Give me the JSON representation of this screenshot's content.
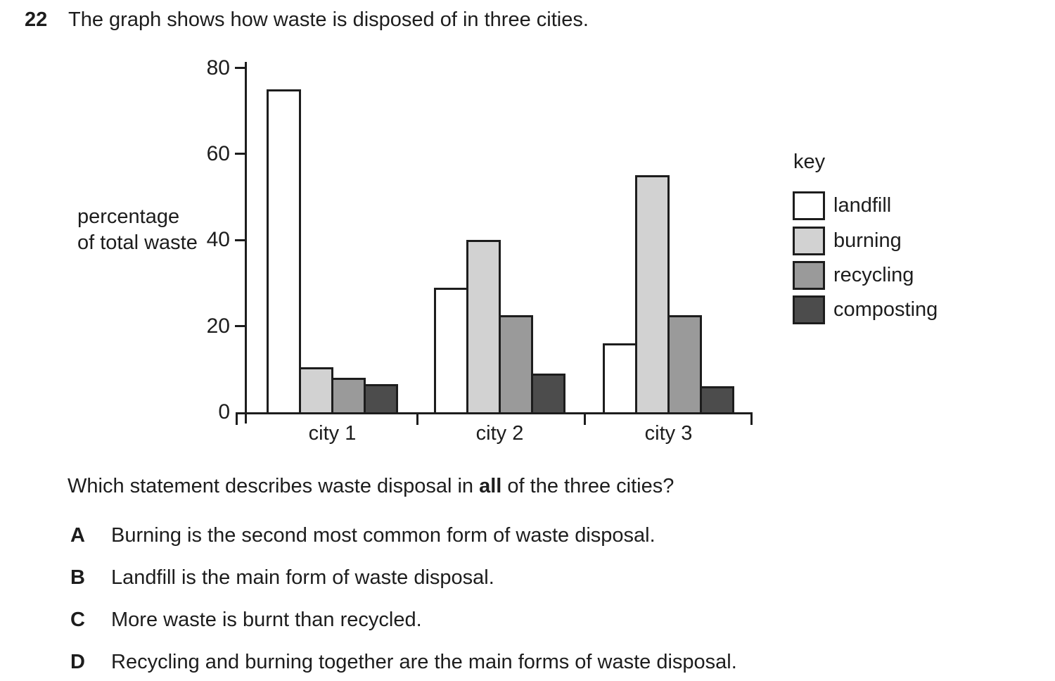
{
  "page": {
    "background_color": "#ffffff",
    "ink_color": "#1d1d1d"
  },
  "question": {
    "number": "22",
    "title": "The graph shows how waste is disposed of in three cities.",
    "prompt_pre": "Which statement describes waste disposal in ",
    "prompt_bold": "all",
    "prompt_post": " of the three cities?",
    "options": [
      {
        "letter": "A",
        "text": "Burning is the second most common form of waste disposal."
      },
      {
        "letter": "B",
        "text": "Landfill is the main form of waste disposal."
      },
      {
        "letter": "C",
        "text": "More waste is burnt than recycled."
      },
      {
        "letter": "D",
        "text": "Recycling and burning together are the main forms of waste disposal."
      }
    ]
  },
  "chart_data": {
    "type": "bar",
    "categories": [
      "city 1",
      "city 2",
      "city 3"
    ],
    "series": [
      {
        "name": "landfill",
        "color": "#ffffff",
        "values": [
          75,
          29,
          16
        ]
      },
      {
        "name": "burning",
        "color": "#d2d2d2",
        "values": [
          10.5,
          40,
          55
        ]
      },
      {
        "name": "recycling",
        "color": "#9a9a9a",
        "values": [
          8,
          22.5,
          22.5
        ]
      },
      {
        "name": "composting",
        "color": "#4c4c4c",
        "values": [
          6.5,
          9,
          6
        ]
      }
    ],
    "title": "",
    "xlabel": "",
    "ylabel": "percentage of total waste",
    "ylim": [
      0,
      80
    ],
    "yticks": [
      0,
      20,
      40,
      60,
      80
    ],
    "grid": false,
    "legend_position": "right",
    "axis_color": "#1d1d1d",
    "key": {
      "title": "key",
      "items": [
        {
          "label": "landfill",
          "color": "#ffffff"
        },
        {
          "label": "burning",
          "color": "#d2d2d2"
        },
        {
          "label": "recycling",
          "color": "#9a9a9a"
        },
        {
          "label": "composting",
          "color": "#4c4c4c"
        }
      ]
    }
  }
}
